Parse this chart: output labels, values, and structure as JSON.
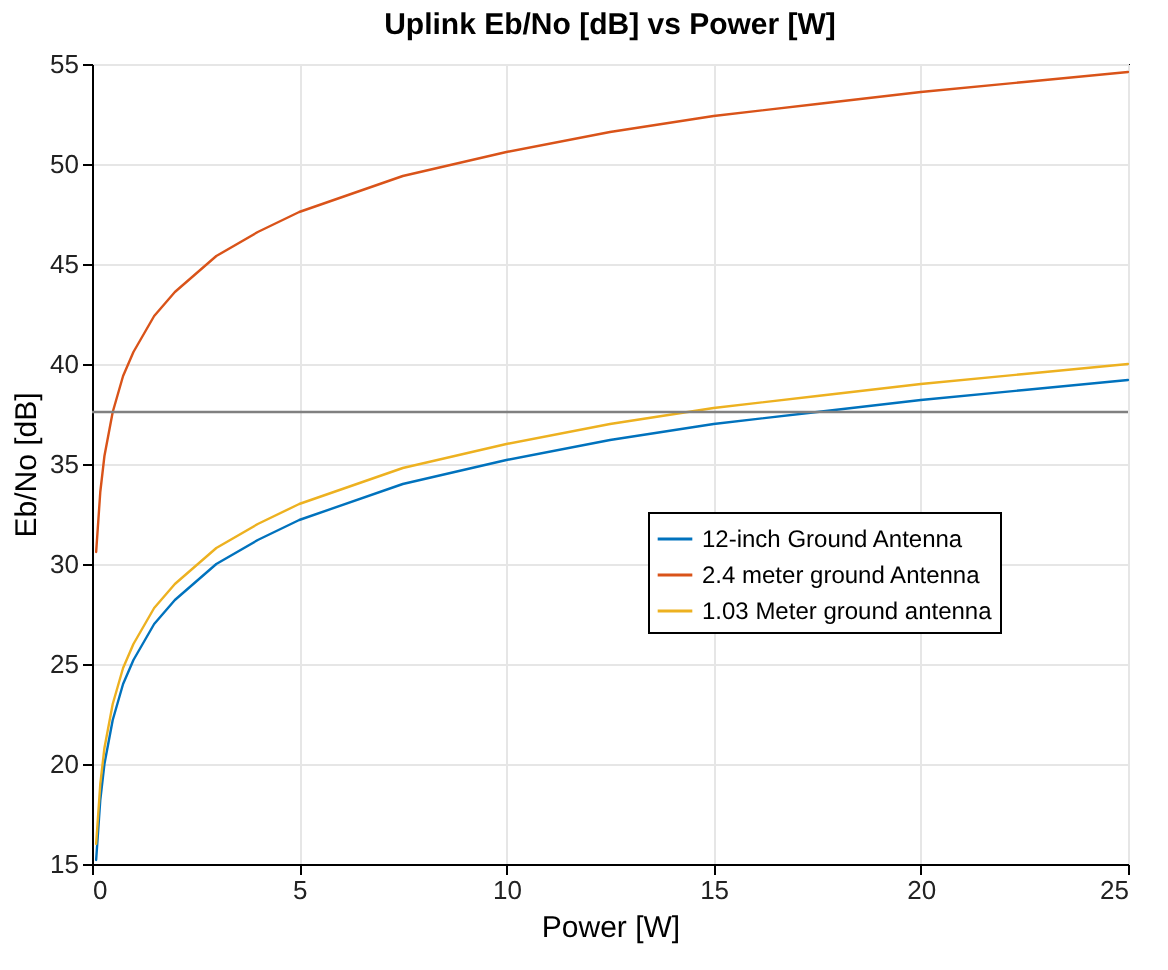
{
  "chart_data": {
    "type": "line",
    "title": "Uplink Eb/No [dB] vs Power [W]",
    "xlabel": "Power [W]",
    "ylabel": "Eb/No [dB]",
    "x": [
      0.1,
      0.2,
      0.3,
      0.5,
      0.75,
      1,
      1.5,
      2,
      3,
      4,
      5,
      7.5,
      10,
      12.5,
      15,
      17.5,
      20,
      22.5,
      25
    ],
    "series": [
      {
        "name": "12-inch Ground Antenna",
        "color": "#0072bd",
        "values": [
          15.2,
          18.2,
          20.0,
          22.2,
          24.0,
          25.2,
          27.0,
          28.2,
          30.0,
          31.2,
          32.2,
          34.0,
          35.2,
          36.2,
          37.0,
          37.6,
          38.2,
          38.7,
          39.2
        ]
      },
      {
        "name": "2.4 meter ground Antenna",
        "color": "#d95319",
        "values": [
          30.6,
          33.6,
          35.4,
          37.6,
          39.4,
          40.6,
          42.4,
          43.6,
          45.4,
          46.6,
          47.6,
          49.4,
          50.6,
          51.6,
          52.4,
          53.0,
          53.6,
          54.1,
          54.6
        ]
      },
      {
        "name": "1.03 Meter ground antenna",
        "color": "#edb120",
        "values": [
          16.0,
          19.0,
          20.8,
          23.0,
          24.8,
          26.0,
          27.8,
          29.0,
          30.8,
          32.0,
          33.0,
          34.8,
          36.0,
          37.0,
          37.8,
          38.4,
          39.0,
          39.5,
          40.0
        ]
      }
    ],
    "xlim": [
      0,
      25
    ],
    "xticks": [
      0,
      5,
      10,
      15,
      20,
      25
    ],
    "ylim": [
      15,
      55
    ],
    "yticks": [
      15,
      20,
      25,
      30,
      35,
      40,
      45,
      50,
      55
    ],
    "ref_lines": [
      {
        "axis": "y",
        "value": 37.6,
        "color": "#808080"
      }
    ],
    "grid": true,
    "legend": "right",
    "line_style": "solid",
    "marker": "none"
  }
}
